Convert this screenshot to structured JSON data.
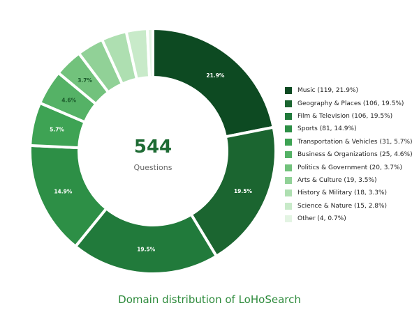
{
  "chart_data": {
    "type": "pie",
    "title": "Domain distribution of LoHoSearch",
    "center_value": "544",
    "center_label": "Questions",
    "legend_position": "right",
    "slices": [
      {
        "name": "Music",
        "count": 119,
        "percent": 21.9,
        "color": "#0d4a22",
        "label_text": "21.9%",
        "legend_text": "Music  (119, 21.9%)"
      },
      {
        "name": "Geography & Places",
        "count": 106,
        "percent": 19.5,
        "color": "#1b6530",
        "label_text": "19.5%",
        "legend_text": "Geography & Places  (106, 19.5%)"
      },
      {
        "name": "Film & Television",
        "count": 106,
        "percent": 19.5,
        "color": "#217a3b",
        "label_text": "19.5%",
        "legend_text": "Film & Television  (106, 19.5%)"
      },
      {
        "name": "Sports",
        "count": 81,
        "percent": 14.9,
        "color": "#2d8f46",
        "label_text": "14.9%",
        "legend_text": "Sports  (81, 14.9%)"
      },
      {
        "name": "Transportation & Vehicles",
        "count": 31,
        "percent": 5.7,
        "color": "#3ea354",
        "label_text": "5.7%",
        "legend_text": "Transportation & Vehicles  (31, 5.7%)"
      },
      {
        "name": "Business & Organizations",
        "count": 25,
        "percent": 4.6,
        "color": "#55b266",
        "label_text": "4.6%",
        "legend_text": "Business & Organizations  (25, 4.6%)"
      },
      {
        "name": "Politics & Government",
        "count": 20,
        "percent": 3.7,
        "color": "#72c27c",
        "label_text": "3.7%",
        "legend_text": "Politics & Government  (20, 3.7%)"
      },
      {
        "name": "Arts & Culture",
        "count": 19,
        "percent": 3.5,
        "color": "#91d197",
        "label_text": "",
        "legend_text": "Arts & Culture  (19, 3.5%)"
      },
      {
        "name": "History & Military",
        "count": 18,
        "percent": 3.3,
        "color": "#aedfb1",
        "label_text": "",
        "legend_text": "History & Military  (18, 3.3%)"
      },
      {
        "name": "Science & Nature",
        "count": 15,
        "percent": 2.8,
        "color": "#c8eac9",
        "label_text": "",
        "legend_text": "Science & Nature  (15, 2.8%)"
      },
      {
        "name": "Other",
        "count": 4,
        "percent": 0.7,
        "color": "#e3f4e3",
        "label_text": "",
        "legend_text": "Other  (4, 0.7%)"
      }
    ]
  }
}
